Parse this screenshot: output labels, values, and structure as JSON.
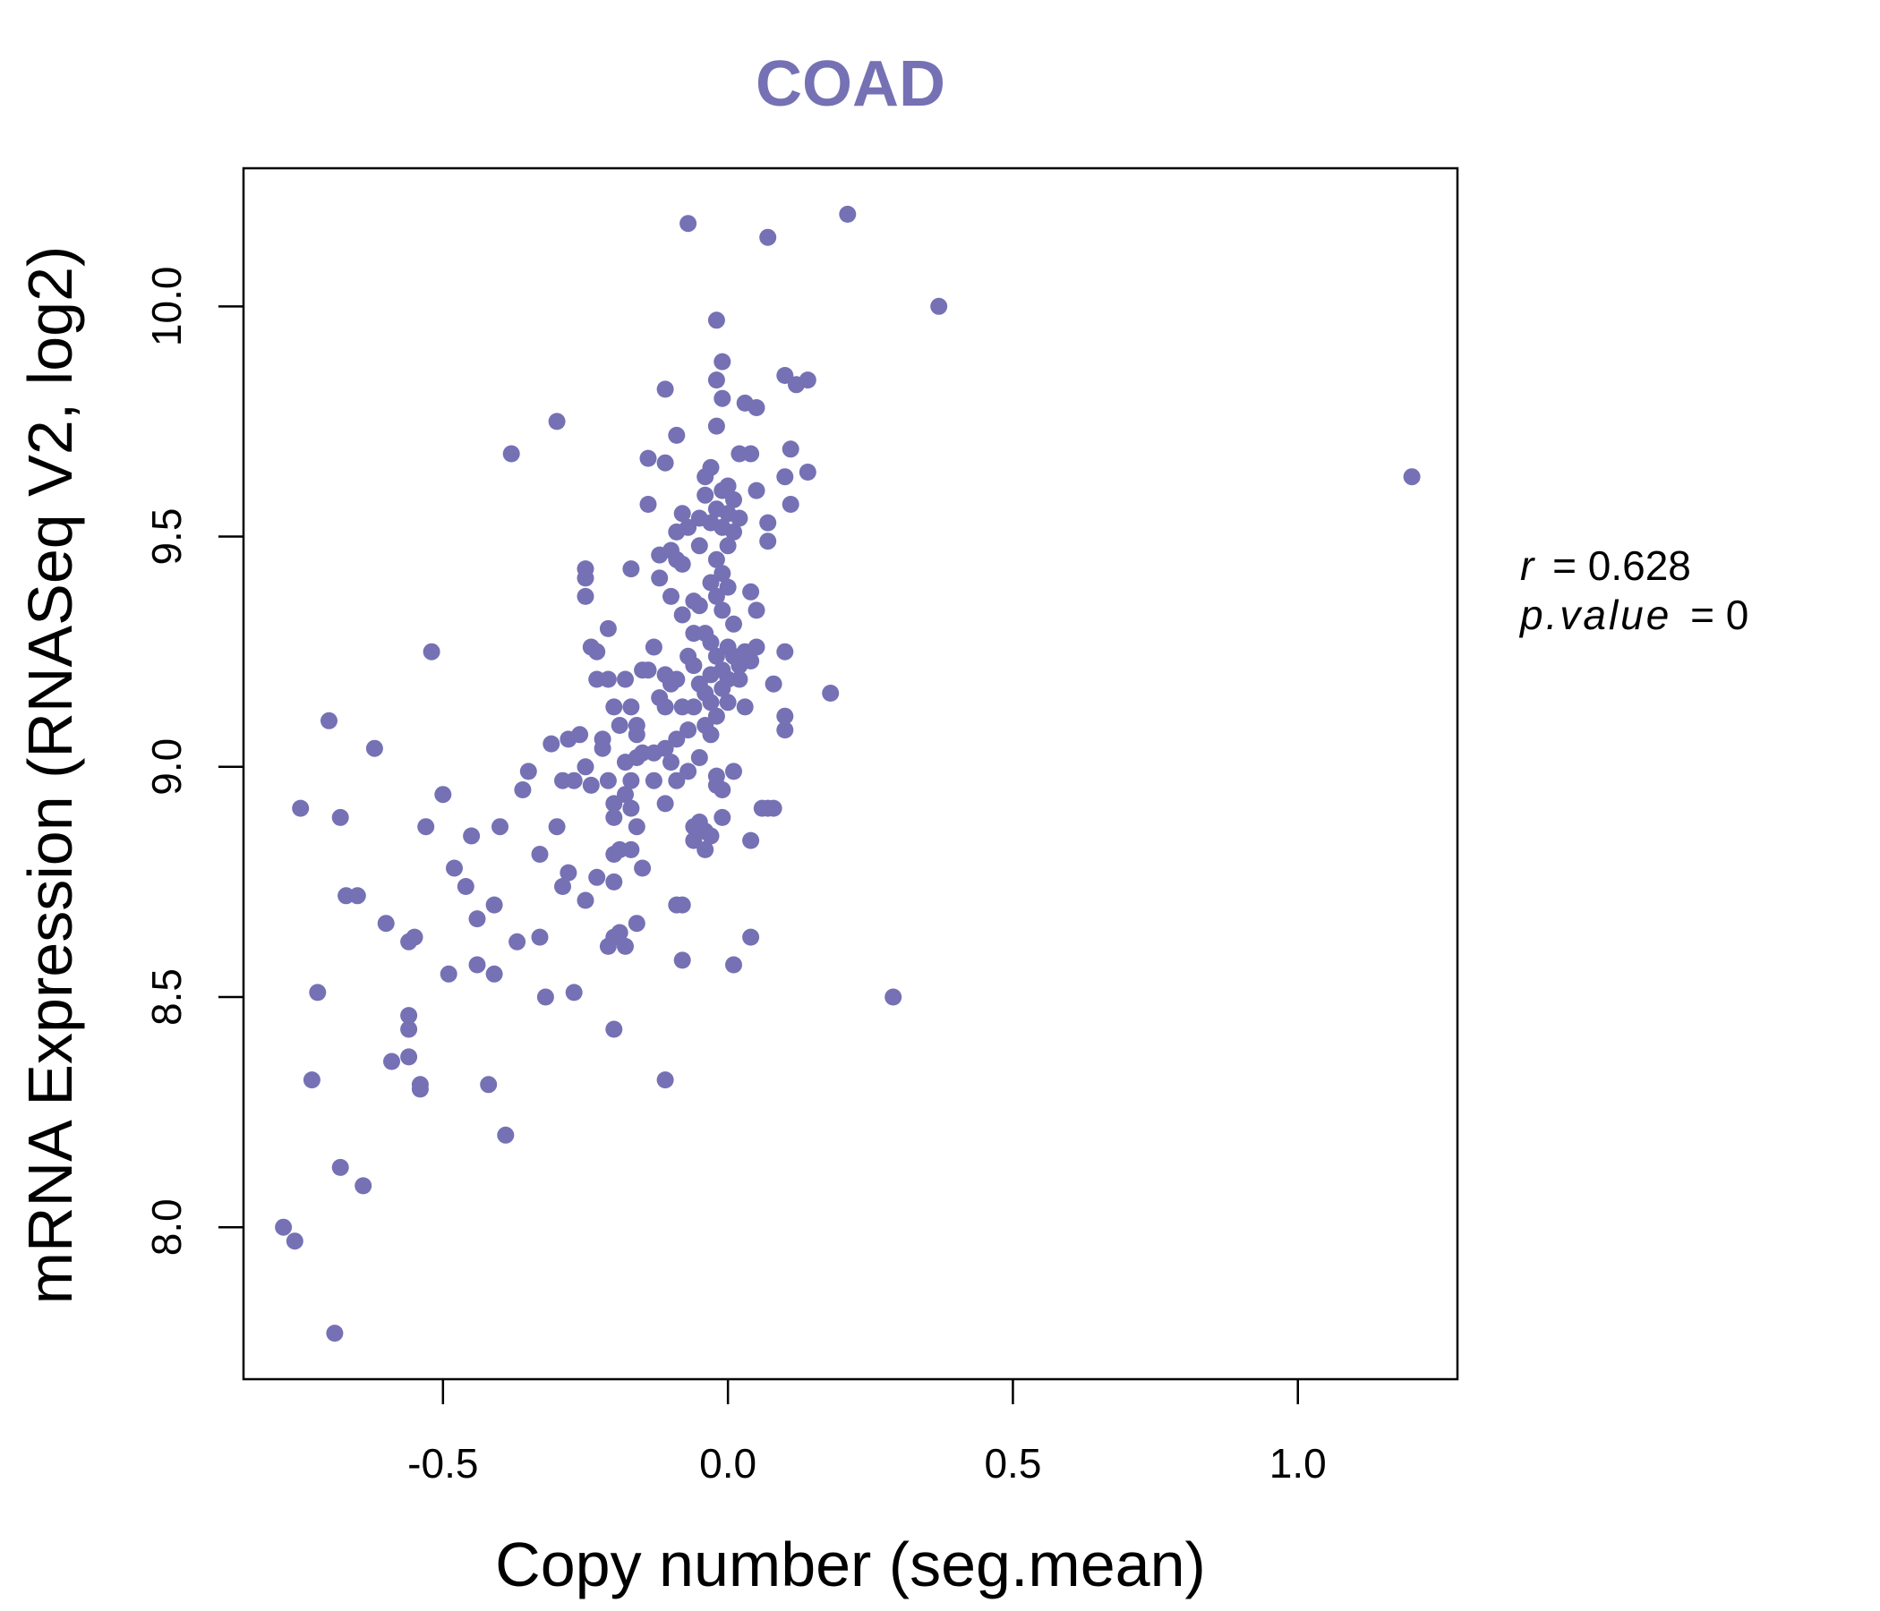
{
  "colors": {
    "point": "#7571B4",
    "title": "#7571B4",
    "axis": "#000000"
  },
  "chart_data": {
    "type": "scatter",
    "title": "COAD",
    "xlabel": "Copy number (seg.mean)",
    "ylabel": "mRNA Expression (RNASeq V2, log2)",
    "xlim": [
      -0.85,
      1.28
    ],
    "ylim": [
      7.67,
      10.3
    ],
    "xticks": [
      -0.5,
      0.0,
      0.5,
      1.0
    ],
    "xtick_labels": [
      "-0.5",
      "0.0",
      "0.5",
      "1.0"
    ],
    "yticks": [
      8.0,
      8.5,
      9.0,
      9.5,
      10.0
    ],
    "ytick_labels": [
      "8.0",
      "8.5",
      "9.0",
      "9.5",
      "10.0"
    ],
    "grid": false,
    "stats": {
      "r_label": "r",
      "r_value": "0.628",
      "p_label": "p.value",
      "p_value": "0"
    },
    "points": [
      [
        -0.78,
        8.0
      ],
      [
        -0.76,
        7.97
      ],
      [
        -0.69,
        7.77
      ],
      [
        -0.75,
        8.91
      ],
      [
        -0.73,
        8.32
      ],
      [
        -0.72,
        8.51
      ],
      [
        -0.68,
        8.13
      ],
      [
        -0.64,
        8.09
      ],
      [
        -0.7,
        9.1
      ],
      [
        -0.68,
        8.89
      ],
      [
        -0.67,
        8.72
      ],
      [
        -0.65,
        8.72
      ],
      [
        -0.62,
        9.04
      ],
      [
        -0.6,
        8.66
      ],
      [
        -0.59,
        8.36
      ],
      [
        -0.56,
        8.62
      ],
      [
        -0.55,
        8.63
      ],
      [
        -0.56,
        8.43
      ],
      [
        -0.56,
        8.46
      ],
      [
        -0.56,
        8.37
      ],
      [
        -0.54,
        8.31
      ],
      [
        -0.54,
        8.3
      ],
      [
        -0.53,
        8.87
      ],
      [
        -0.52,
        9.25
      ],
      [
        -0.5,
        8.94
      ],
      [
        -0.49,
        8.55
      ],
      [
        -0.48,
        8.78
      ],
      [
        -0.46,
        8.74
      ],
      [
        -0.45,
        8.85
      ],
      [
        -0.44,
        8.67
      ],
      [
        -0.44,
        8.57
      ],
      [
        -0.42,
        8.31
      ],
      [
        -0.41,
        8.55
      ],
      [
        -0.41,
        8.7
      ],
      [
        -0.4,
        8.87
      ],
      [
        -0.39,
        8.2
      ],
      [
        -0.38,
        9.68
      ],
      [
        -0.37,
        8.62
      ],
      [
        -0.36,
        8.95
      ],
      [
        -0.35,
        8.99
      ],
      [
        -0.33,
        8.81
      ],
      [
        -0.33,
        8.63
      ],
      [
        -0.32,
        8.5
      ],
      [
        -0.31,
        9.05
      ],
      [
        -0.3,
        9.75
      ],
      [
        -0.3,
        8.87
      ],
      [
        -0.29,
        8.74
      ],
      [
        -0.29,
        8.97
      ],
      [
        -0.28,
        9.06
      ],
      [
        -0.28,
        8.77
      ],
      [
        -0.27,
        8.97
      ],
      [
        -0.27,
        8.51
      ],
      [
        -0.26,
        9.07
      ],
      [
        -0.25,
        9.37
      ],
      [
        -0.25,
        9.41
      ],
      [
        -0.25,
        9.43
      ],
      [
        -0.25,
        8.71
      ],
      [
        -0.25,
        9.0
      ],
      [
        -0.24,
        8.96
      ],
      [
        -0.24,
        9.26
      ],
      [
        -0.23,
        9.25
      ],
      [
        -0.23,
        9.19
      ],
      [
        -0.23,
        8.76
      ],
      [
        -0.22,
        9.06
      ],
      [
        -0.22,
        9.04
      ],
      [
        -0.21,
        9.3
      ],
      [
        -0.21,
        8.61
      ],
      [
        -0.21,
        9.19
      ],
      [
        -0.21,
        8.97
      ],
      [
        -0.2,
        8.92
      ],
      [
        -0.2,
        9.13
      ],
      [
        -0.2,
        8.63
      ],
      [
        -0.2,
        8.43
      ],
      [
        -0.2,
        8.75
      ],
      [
        -0.2,
        8.81
      ],
      [
        -0.2,
        8.89
      ],
      [
        -0.19,
        9.09
      ],
      [
        -0.19,
        8.64
      ],
      [
        -0.19,
        8.82
      ],
      [
        -0.18,
        9.19
      ],
      [
        -0.18,
        9.01
      ],
      [
        -0.18,
        8.94
      ],
      [
        -0.18,
        8.61
      ],
      [
        -0.17,
        9.43
      ],
      [
        -0.17,
        9.13
      ],
      [
        -0.17,
        8.97
      ],
      [
        -0.17,
        8.82
      ],
      [
        -0.17,
        8.91
      ],
      [
        -0.16,
        9.09
      ],
      [
        -0.16,
        9.07
      ],
      [
        -0.16,
        9.02
      ],
      [
        -0.16,
        8.87
      ],
      [
        -0.16,
        8.66
      ],
      [
        -0.15,
        9.21
      ],
      [
        -0.15,
        9.03
      ],
      [
        -0.15,
        8.78
      ],
      [
        -0.14,
        9.57
      ],
      [
        -0.14,
        9.67
      ],
      [
        -0.14,
        9.21
      ],
      [
        -0.13,
        9.26
      ],
      [
        -0.13,
        9.03
      ],
      [
        -0.13,
        8.97
      ],
      [
        -0.12,
        9.46
      ],
      [
        -0.12,
        9.41
      ],
      [
        -0.12,
        9.15
      ],
      [
        -0.11,
        9.82
      ],
      [
        -0.11,
        9.66
      ],
      [
        -0.11,
        9.2
      ],
      [
        -0.11,
        9.13
      ],
      [
        -0.11,
        9.04
      ],
      [
        -0.11,
        8.92
      ],
      [
        -0.11,
        8.32
      ],
      [
        -0.1,
        9.47
      ],
      [
        -0.1,
        9.37
      ],
      [
        -0.1,
        9.18
      ],
      [
        -0.1,
        9.01
      ],
      [
        -0.09,
        9.72
      ],
      [
        -0.09,
        9.51
      ],
      [
        -0.09,
        9.45
      ],
      [
        -0.09,
        9.19
      ],
      [
        -0.09,
        9.06
      ],
      [
        -0.09,
        8.97
      ],
      [
        -0.09,
        8.7
      ],
      [
        -0.08,
        9.55
      ],
      [
        -0.08,
        9.44
      ],
      [
        -0.08,
        9.33
      ],
      [
        -0.08,
        9.13
      ],
      [
        -0.08,
        8.7
      ],
      [
        -0.08,
        8.58
      ],
      [
        -0.07,
        10.18
      ],
      [
        -0.07,
        9.52
      ],
      [
        -0.07,
        9.24
      ],
      [
        -0.07,
        9.08
      ],
      [
        -0.07,
        8.99
      ],
      [
        -0.06,
        9.36
      ],
      [
        -0.06,
        9.29
      ],
      [
        -0.06,
        9.22
      ],
      [
        -0.06,
        9.13
      ],
      [
        -0.06,
        8.87
      ],
      [
        -0.06,
        8.84
      ],
      [
        -0.05,
        9.54
      ],
      [
        -0.05,
        9.48
      ],
      [
        -0.05,
        9.35
      ],
      [
        -0.05,
        9.18
      ],
      [
        -0.05,
        9.02
      ],
      [
        -0.05,
        8.88
      ],
      [
        -0.04,
        9.63
      ],
      [
        -0.04,
        9.59
      ],
      [
        -0.04,
        9.29
      ],
      [
        -0.04,
        9.16
      ],
      [
        -0.04,
        9.09
      ],
      [
        -0.04,
        8.86
      ],
      [
        -0.04,
        8.82
      ],
      [
        -0.03,
        9.65
      ],
      [
        -0.03,
        9.53
      ],
      [
        -0.03,
        9.4
      ],
      [
        -0.03,
        9.27
      ],
      [
        -0.03,
        9.2
      ],
      [
        -0.03,
        9.14
      ],
      [
        -0.03,
        9.07
      ],
      [
        -0.03,
        8.85
      ],
      [
        -0.02,
        9.97
      ],
      [
        -0.02,
        9.84
      ],
      [
        -0.02,
        9.74
      ],
      [
        -0.02,
        9.56
      ],
      [
        -0.02,
        9.45
      ],
      [
        -0.02,
        9.37
      ],
      [
        -0.02,
        9.24
      ],
      [
        -0.02,
        9.11
      ],
      [
        -0.02,
        8.98
      ],
      [
        -0.02,
        8.96
      ],
      [
        -0.01,
        9.88
      ],
      [
        -0.01,
        9.8
      ],
      [
        -0.01,
        9.6
      ],
      [
        -0.01,
        9.52
      ],
      [
        -0.01,
        9.42
      ],
      [
        -0.01,
        9.34
      ],
      [
        -0.01,
        9.21
      ],
      [
        -0.01,
        9.17
      ],
      [
        -0.01,
        8.95
      ],
      [
        -0.01,
        8.89
      ],
      [
        0.0,
        9.61
      ],
      [
        0.0,
        9.55
      ],
      [
        0.0,
        9.48
      ],
      [
        0.0,
        9.39
      ],
      [
        0.0,
        9.26
      ],
      [
        0.0,
        9.19
      ],
      [
        0.0,
        9.14
      ],
      [
        0.01,
        9.58
      ],
      [
        0.01,
        9.51
      ],
      [
        0.01,
        9.31
      ],
      [
        0.01,
        9.24
      ],
      [
        0.01,
        8.99
      ],
      [
        0.01,
        8.57
      ],
      [
        0.02,
        9.68
      ],
      [
        0.02,
        9.54
      ],
      [
        0.02,
        9.19
      ],
      [
        0.02,
        9.22
      ],
      [
        0.03,
        9.79
      ],
      [
        0.03,
        9.13
      ],
      [
        0.03,
        9.25
      ],
      [
        0.04,
        9.68
      ],
      [
        0.04,
        9.38
      ],
      [
        0.04,
        9.23
      ],
      [
        0.04,
        8.84
      ],
      [
        0.04,
        8.63
      ],
      [
        0.05,
        9.78
      ],
      [
        0.05,
        9.6
      ],
      [
        0.05,
        9.34
      ],
      [
        0.05,
        9.26
      ],
      [
        0.06,
        8.91
      ],
      [
        0.07,
        9.49
      ],
      [
        0.07,
        9.53
      ],
      [
        0.07,
        8.91
      ],
      [
        0.08,
        9.18
      ],
      [
        0.08,
        8.91
      ],
      [
        0.1,
        9.85
      ],
      [
        0.1,
        9.63
      ],
      [
        0.1,
        9.25
      ],
      [
        0.1,
        9.11
      ],
      [
        0.1,
        9.08
      ],
      [
        0.11,
        9.69
      ],
      [
        0.11,
        9.57
      ],
      [
        0.12,
        9.83
      ],
      [
        0.14,
        9.84
      ],
      [
        0.14,
        9.64
      ],
      [
        0.18,
        9.16
      ],
      [
        0.21,
        10.2
      ],
      [
        0.07,
        10.15
      ],
      [
        0.29,
        8.5
      ],
      [
        0.37,
        10.0
      ],
      [
        1.2,
        9.63
      ]
    ]
  }
}
